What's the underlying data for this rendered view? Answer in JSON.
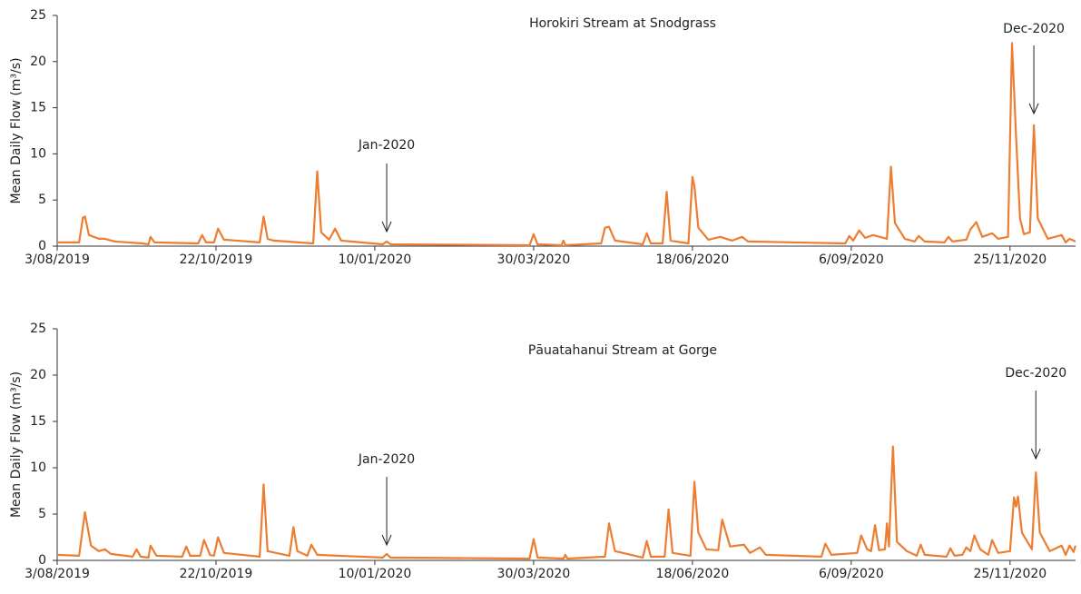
{
  "chart_data": [
    {
      "type": "line",
      "title": "Horokiri Stream at Snodgrass",
      "ylabel": "Mean Daily Flow (m³/s)",
      "color": "#ed7d31",
      "x": [
        "3/08/2019",
        "14/08/2019",
        "16/08/2019",
        "17/08/2019",
        "19/08/2019",
        "24/08/2019",
        "27/08/2019",
        "1/09/2019",
        "15/09/2019",
        "18/09/2019",
        "19/09/2019",
        "21/09/2019",
        "13/10/2019",
        "15/10/2019",
        "17/10/2019",
        "21/10/2019",
        "23/10/2019",
        "26/10/2019",
        "13/11/2019",
        "15/11/2019",
        "17/11/2019",
        "20/11/2019",
        "10/12/2019",
        "12/12/2019",
        "14/12/2019",
        "18/12/2019",
        "21/12/2019",
        "24/12/2019",
        "14/01/2020",
        "16/01/2020",
        "18/01/2020",
        "28/03/2020",
        "30/03/2020",
        "1/04/2020",
        "13/04/2020",
        "14/04/2020",
        "15/04/2020",
        "3/05/2020",
        "5/05/2020",
        "7/05/2020",
        "10/05/2020",
        "24/05/2020",
        "26/05/2020",
        "28/05/2020",
        "3/06/2020",
        "5/06/2020",
        "7/06/2020",
        "16/06/2020",
        "18/06/2020",
        "19/06/2020",
        "21/06/2020",
        "26/06/2020",
        "2/07/2020",
        "8/07/2020",
        "13/07/2020",
        "16/07/2020",
        "3/09/2020",
        "5/09/2020",
        "7/09/2020",
        "10/09/2020",
        "13/09/2020",
        "17/09/2020",
        "24/09/2020",
        "26/09/2020",
        "28/09/2020",
        "3/10/2020",
        "8/10/2020",
        "10/10/2020",
        "13/10/2020",
        "23/10/2020",
        "25/10/2020",
        "27/10/2020",
        "3/11/2020",
        "5/11/2020",
        "8/11/2020",
        "11/11/2020",
        "16/11/2020",
        "19/11/2020",
        "24/11/2020",
        "26/11/2020",
        "28/11/2020",
        "30/11/2020",
        "2/12/2020",
        "5/12/2020",
        "7/12/2020",
        "9/12/2020",
        "14/12/2020",
        "21/12/2020",
        "23/12/2020",
        "25/12/2020",
        "28/12/2020"
      ],
      "values": [
        0.4,
        0.4,
        3.1,
        3.2,
        1.2,
        0.8,
        0.8,
        0.5,
        0.3,
        0.2,
        1.0,
        0.4,
        0.3,
        1.2,
        0.4,
        0.4,
        1.9,
        0.7,
        0.4,
        3.2,
        0.8,
        0.6,
        0.3,
        8.1,
        1.5,
        0.7,
        1.9,
        0.6,
        0.2,
        0.5,
        0.2,
        0.1,
        1.3,
        0.2,
        0.1,
        0.6,
        0.1,
        0.3,
        2.0,
        2.1,
        0.6,
        0.2,
        1.4,
        0.3,
        0.3,
        5.9,
        0.6,
        0.3,
        7.5,
        6.5,
        2.0,
        0.7,
        1.0,
        0.6,
        1.0,
        0.5,
        0.3,
        1.1,
        0.6,
        1.7,
        0.9,
        1.2,
        0.8,
        8.6,
        2.5,
        0.8,
        0.5,
        1.1,
        0.5,
        0.4,
        1.0,
        0.5,
        0.7,
        1.8,
        2.6,
        1.0,
        1.4,
        0.8,
        1.0,
        22.0,
        12.0,
        3.0,
        1.3,
        1.5,
        13.1,
        3.0,
        0.8,
        1.2,
        0.4,
        0.8,
        0.5
      ],
      "xlim": [
        "3/08/2019",
        "28/12/2020"
      ],
      "xticks": [
        "3/08/2019",
        "22/10/2019",
        "10/01/2020",
        "30/03/2020",
        "18/06/2020",
        "6/09/2020",
        "25/11/2020"
      ],
      "ylim": [
        0,
        25
      ],
      "yticks": [
        0,
        5,
        10,
        15,
        20,
        25
      ],
      "annotations": [
        {
          "text": "Jan-2020",
          "x": "16/01/2020"
        },
        {
          "text": "Dec-2020",
          "x": "7/12/2020"
        }
      ]
    },
    {
      "type": "line",
      "title": "Pāuatahanui Stream at Gorge",
      "ylabel": "Mean Daily Flow (m³/s)",
      "color": "#ed7d31",
      "x": [
        "3/08/2019",
        "14/08/2019",
        "17/08/2019",
        "20/08/2019",
        "24/08/2019",
        "27/08/2019",
        "30/08/2019",
        "10/09/2019",
        "12/09/2019",
        "14/09/2019",
        "18/09/2019",
        "19/09/2019",
        "22/09/2019",
        "5/10/2019",
        "7/10/2019",
        "9/10/2019",
        "14/10/2019",
        "16/10/2019",
        "19/10/2019",
        "21/10/2019",
        "23/10/2019",
        "26/10/2019",
        "13/11/2019",
        "15/11/2019",
        "17/11/2019",
        "28/11/2019",
        "30/11/2019",
        "2/12/2019",
        "7/12/2019",
        "9/12/2019",
        "12/12/2019",
        "14/01/2020",
        "16/01/2020",
        "18/01/2020",
        "28/03/2020",
        "30/03/2020",
        "1/04/2020",
        "14/04/2020",
        "15/04/2020",
        "16/04/2020",
        "5/05/2020",
        "7/05/2020",
        "10/05/2020",
        "24/05/2020",
        "26/05/2020",
        "28/05/2020",
        "4/06/2020",
        "6/06/2020",
        "8/06/2020",
        "17/06/2020",
        "19/06/2020",
        "21/06/2020",
        "25/06/2020",
        "1/07/2020",
        "3/07/2020",
        "7/07/2020",
        "14/07/2020",
        "17/07/2020",
        "22/07/2020",
        "25/07/2020",
        "22/08/2020",
        "24/08/2020",
        "27/08/2020",
        "9/09/2020",
        "11/09/2020",
        "14/09/2020",
        "16/09/2020",
        "18/09/2020",
        "20/09/2020",
        "23/09/2020",
        "24/09/2020",
        "25/09/2020",
        "27/09/2020",
        "29/09/2020",
        "4/10/2020",
        "9/10/2020",
        "11/10/2020",
        "13/10/2020",
        "24/10/2020",
        "26/10/2020",
        "28/10/2020",
        "1/11/2020",
        "3/11/2020",
        "5/11/2020",
        "7/11/2020",
        "10/11/2020",
        "14/11/2020",
        "16/11/2020",
        "19/11/2020",
        "25/11/2020",
        "27/11/2020",
        "28/11/2020",
        "29/11/2020",
        "1/12/2020",
        "6/12/2020",
        "8/12/2020",
        "10/12/2020",
        "15/12/2020",
        "21/12/2020",
        "23/12/2020",
        "25/12/2020",
        "27/12/2020",
        "28/12/2020"
      ],
      "values": [
        0.6,
        0.5,
        5.2,
        1.6,
        1.0,
        1.2,
        0.7,
        0.4,
        1.2,
        0.4,
        0.3,
        1.6,
        0.5,
        0.4,
        1.5,
        0.5,
        0.5,
        2.2,
        0.6,
        0.5,
        2.5,
        0.8,
        0.4,
        8.2,
        1.0,
        0.5,
        3.6,
        1.0,
        0.5,
        1.7,
        0.6,
        0.3,
        0.7,
        0.3,
        0.2,
        2.3,
        0.3,
        0.2,
        0.6,
        0.2,
        0.4,
        4.0,
        1.0,
        0.3,
        2.1,
        0.4,
        0.4,
        5.5,
        0.8,
        0.5,
        8.5,
        3.0,
        1.2,
        1.1,
        4.4,
        1.5,
        1.7,
        0.8,
        1.4,
        0.6,
        0.4,
        1.8,
        0.6,
        0.8,
        2.7,
        1.2,
        1.0,
        3.8,
        1.1,
        1.2,
        4.0,
        1.5,
        12.3,
        2.0,
        1.0,
        0.5,
        1.7,
        0.6,
        0.4,
        1.3,
        0.5,
        0.6,
        1.4,
        1.0,
        2.7,
        1.2,
        0.6,
        2.2,
        0.8,
        1.0,
        6.8,
        5.8,
        6.9,
        3.0,
        1.2,
        9.5,
        3.0,
        1.0,
        1.6,
        0.6,
        1.6,
        0.9,
        1.6
      ],
      "xlim": [
        "3/08/2019",
        "28/12/2020"
      ],
      "xticks": [
        "3/08/2019",
        "22/10/2019",
        "10/01/2020",
        "30/03/2020",
        "18/06/2020",
        "6/09/2020",
        "25/11/2020"
      ],
      "ylim": [
        0,
        25
      ],
      "yticks": [
        0,
        5,
        10,
        15,
        20,
        25
      ],
      "annotations": [
        {
          "text": "Jan-2020",
          "x": "16/01/2020"
        },
        {
          "text": "Dec-2020",
          "x": "8/12/2020"
        }
      ]
    }
  ]
}
